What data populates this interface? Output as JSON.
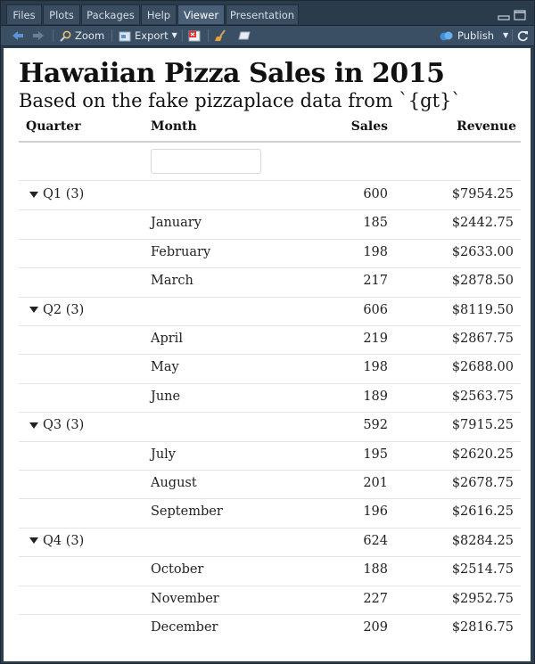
{
  "tabs": [
    "Files",
    "Plots",
    "Packages",
    "Help",
    "Viewer",
    "Presentation"
  ],
  "active_tab": "Viewer",
  "toolbar": {
    "zoom": "Zoom",
    "export": "Export",
    "publish": "Publish"
  },
  "table": {
    "title": "Hawaiian Pizza Sales in 2015",
    "subtitle": "Based on the fake pizzaplace data from `{gt}`",
    "columns": {
      "quarter": "Quarter",
      "month": "Month",
      "sales": "Sales",
      "revenue": "Revenue"
    },
    "groups": [
      {
        "label": "Q1 (3)",
        "sales": "600",
        "revenue": "$7954.25",
        "rows": [
          {
            "month": "January",
            "sales": "185",
            "revenue": "$2442.75"
          },
          {
            "month": "February",
            "sales": "198",
            "revenue": "$2633.00"
          },
          {
            "month": "March",
            "sales": "217",
            "revenue": "$2878.50"
          }
        ]
      },
      {
        "label": "Q2 (3)",
        "sales": "606",
        "revenue": "$8119.50",
        "rows": [
          {
            "month": "April",
            "sales": "219",
            "revenue": "$2867.75"
          },
          {
            "month": "May",
            "sales": "198",
            "revenue": "$2688.00"
          },
          {
            "month": "June",
            "sales": "189",
            "revenue": "$2563.75"
          }
        ]
      },
      {
        "label": "Q3 (3)",
        "sales": "592",
        "revenue": "$7915.25",
        "rows": [
          {
            "month": "July",
            "sales": "195",
            "revenue": "$2620.25"
          },
          {
            "month": "August",
            "sales": "201",
            "revenue": "$2678.75"
          },
          {
            "month": "September",
            "sales": "196",
            "revenue": "$2616.25"
          }
        ]
      },
      {
        "label": "Q4 (3)",
        "sales": "624",
        "revenue": "$8284.25",
        "rows": [
          {
            "month": "October",
            "sales": "188",
            "revenue": "$2514.75"
          },
          {
            "month": "November",
            "sales": "227",
            "revenue": "$2952.75"
          },
          {
            "month": "December",
            "sales": "209",
            "revenue": "$2816.75"
          }
        ]
      }
    ]
  }
}
